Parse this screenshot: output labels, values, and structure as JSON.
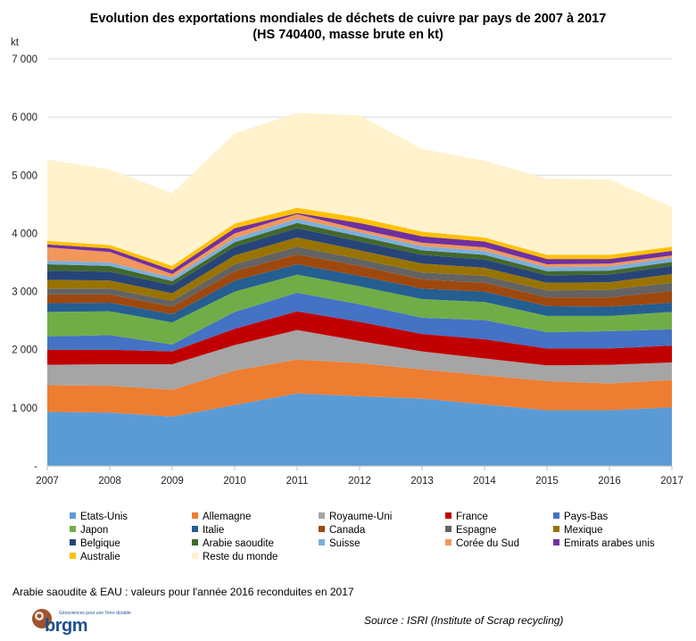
{
  "title_line1": "Evolution des exportations mondiales de déchets de cuivre par pays de 2007 à 2017",
  "title_line2": "(HS 740400, masse brute en kt)",
  "footnote": "Arabie saoudite & EAU : valeurs pour l'année 2016 reconduites en 2017",
  "source": "Source : ISRI (Institute of Scrap recycling)",
  "logo": {
    "word": "brgm",
    "tagline": "Géosciences pour une Terre durable"
  },
  "chart_data": {
    "type": "area",
    "stacked": true,
    "ylabel": "kt",
    "xlabel": "",
    "ylim": [
      0,
      7000
    ],
    "y_ticks": [
      {
        "value": 0,
        "label": "-"
      },
      {
        "value": 1000,
        "label": "1 000"
      },
      {
        "value": 2000,
        "label": "2 000"
      },
      {
        "value": 3000,
        "label": "3 000"
      },
      {
        "value": 4000,
        "label": "4 000"
      },
      {
        "value": 5000,
        "label": "5 000"
      },
      {
        "value": 6000,
        "label": "6 000"
      },
      {
        "value": 7000,
        "label": "7 000"
      }
    ],
    "x": [
      "2007",
      "2008",
      "2009",
      "2010",
      "2011",
      "2012",
      "2013",
      "2014",
      "2015",
      "2016",
      "2017"
    ],
    "grid": true,
    "series": [
      {
        "name": "Etats-Unis",
        "color": "#5b9bd5",
        "values": [
          930,
          920,
          850,
          1050,
          1250,
          1200,
          1160,
          1060,
          960,
          960,
          1010
        ]
      },
      {
        "name": "Allemagne",
        "color": "#ed7d31",
        "values": [
          460,
          460,
          460,
          590,
          580,
          570,
          500,
          500,
          500,
          460,
          470
        ]
      },
      {
        "name": "Royaume-Uni",
        "color": "#a5a5a5",
        "values": [
          350,
          370,
          440,
          440,
          510,
          380,
          310,
          290,
          270,
          320,
          300
        ]
      },
      {
        "name": "France",
        "color": "#c00000",
        "values": [
          260,
          250,
          220,
          280,
          320,
          330,
          300,
          330,
          290,
          280,
          290
        ]
      },
      {
        "name": "Pays-Bas",
        "color": "#4472c4",
        "values": [
          230,
          250,
          120,
          290,
          320,
          300,
          280,
          330,
          280,
          300,
          280
        ]
      },
      {
        "name": "Japon",
        "color": "#70ad47",
        "values": [
          420,
          410,
          380,
          350,
          310,
          310,
          320,
          310,
          280,
          260,
          300
        ]
      },
      {
        "name": "Italie",
        "color": "#255e91",
        "values": [
          150,
          150,
          140,
          190,
          180,
          180,
          180,
          180,
          170,
          160,
          160
        ]
      },
      {
        "name": "Canada",
        "color": "#9e480e",
        "values": [
          150,
          140,
          130,
          160,
          170,
          170,
          160,
          150,
          150,
          160,
          200
        ]
      },
      {
        "name": "Espagne",
        "color": "#636363",
        "values": [
          100,
          100,
          100,
          120,
          130,
          120,
          120,
          120,
          120,
          130,
          140
        ]
      },
      {
        "name": "Mexique",
        "color": "#997300",
        "values": [
          150,
          140,
          130,
          150,
          160,
          150,
          150,
          140,
          130,
          130,
          150
        ]
      },
      {
        "name": "Belgique",
        "color": "#264478",
        "values": [
          160,
          150,
          140,
          150,
          160,
          150,
          150,
          140,
          130,
          130,
          140
        ]
      },
      {
        "name": "Arabie saoudite",
        "color": "#43682b",
        "values": [
          110,
          100,
          70,
          80,
          90,
          90,
          80,
          80,
          70,
          70,
          70
        ]
      },
      {
        "name": "Suisse",
        "color": "#7cafdd",
        "values": [
          60,
          60,
          60,
          70,
          70,
          70,
          70,
          70,
          70,
          70,
          70
        ]
      },
      {
        "name": "Corée du Sud",
        "color": "#f1975a",
        "values": [
          230,
          180,
          60,
          80,
          80,
          50,
          60,
          60,
          50,
          50,
          40
        ]
      },
      {
        "name": "Emirats arabes unis",
        "color": "#7030a0",
        "values": [
          50,
          60,
          70,
          90,
          20,
          110,
          110,
          100,
          90,
          80,
          80
        ]
      },
      {
        "name": "Australie",
        "color": "#ffc000",
        "values": [
          60,
          60,
          70,
          80,
          90,
          90,
          80,
          70,
          70,
          70,
          70
        ]
      },
      {
        "name": "Reste du monde",
        "color": "#fff2cc",
        "values": [
          1400,
          1300,
          1250,
          1550,
          1630,
          1760,
          1420,
          1320,
          1310,
          1300,
          680
        ]
      }
    ]
  }
}
